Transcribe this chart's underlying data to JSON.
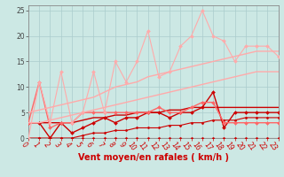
{
  "background_color": "#cce8e4",
  "grid_color": "#aacccc",
  "xlabel": "Vent moyen/en rafales ( km/h )",
  "xlabel_color": "#cc0000",
  "xlabel_fontsize": 7,
  "xtick_color": "#cc0000",
  "ytick_color": "#444444",
  "xlim": [
    0,
    23
  ],
  "ylim": [
    0,
    26
  ],
  "yticks": [
    0,
    5,
    10,
    15,
    20,
    25
  ],
  "xticks": [
    0,
    1,
    2,
    3,
    4,
    5,
    6,
    7,
    8,
    9,
    10,
    11,
    12,
    13,
    14,
    15,
    16,
    17,
    18,
    19,
    20,
    21,
    22,
    23
  ],
  "lines": [
    {
      "x": [
        0,
        1,
        2,
        3,
        4,
        5,
        6,
        7,
        8,
        9,
        10,
        11,
        12,
        13,
        14,
        15,
        16,
        17,
        18,
        19,
        20,
        21,
        22,
        23
      ],
      "y": [
        0,
        0,
        0,
        0,
        0,
        0,
        0,
        0,
        0,
        0,
        0,
        0,
        0,
        0,
        0,
        0,
        0,
        0,
        0,
        0,
        0,
        0,
        0,
        0
      ],
      "color": "#cc0000",
      "linewidth": 0.8,
      "marker": "D",
      "markersize": 1.5,
      "linestyle": "-"
    },
    {
      "x": [
        0,
        1,
        2,
        3,
        4,
        5,
        6,
        7,
        8,
        9,
        10,
        11,
        12,
        13,
        14,
        15,
        16,
        17,
        18,
        19,
        20,
        21,
        22,
        23
      ],
      "y": [
        0,
        0,
        0,
        0,
        0,
        0.5,
        1,
        1,
        1.5,
        1.5,
        2,
        2,
        2,
        2.5,
        2.5,
        3,
        3,
        3.5,
        3.5,
        3.5,
        4,
        4,
        4,
        4
      ],
      "color": "#cc0000",
      "linewidth": 0.8,
      "marker": "D",
      "markersize": 1.5,
      "linestyle": "-"
    },
    {
      "x": [
        0,
        1,
        2,
        3,
        4,
        5,
        6,
        7,
        8,
        9,
        10,
        11,
        12,
        13,
        14,
        15,
        16,
        17,
        18,
        19,
        20,
        21,
        22,
        23
      ],
      "y": [
        3,
        3,
        3,
        3,
        3,
        3.5,
        4,
        4,
        4.5,
        4.5,
        5,
        5,
        5,
        5.5,
        5.5,
        6,
        6,
        6,
        6,
        6,
        6,
        6,
        6,
        6
      ],
      "color": "#cc0000",
      "linewidth": 1.0,
      "marker": null,
      "markersize": 0,
      "linestyle": "-"
    },
    {
      "x": [
        0,
        1,
        2,
        3,
        4,
        5,
        6,
        7,
        8,
        9,
        10,
        11,
        12,
        13,
        14,
        15,
        16,
        17,
        18,
        19,
        20,
        21,
        22,
        23
      ],
      "y": [
        3,
        3,
        0,
        3,
        1,
        2,
        3,
        4,
        3,
        4,
        4,
        5,
        5,
        4,
        5,
        5,
        6,
        9,
        2,
        5,
        5,
        5,
        5,
        5
      ],
      "color": "#cc0000",
      "linewidth": 1.0,
      "marker": "D",
      "markersize": 2,
      "linestyle": "-"
    },
    {
      "x": [
        0,
        1,
        2,
        3,
        4,
        5,
        6,
        7,
        8,
        9,
        10,
        11,
        12,
        13,
        14,
        15,
        16,
        17,
        18,
        19,
        20,
        21,
        22,
        23
      ],
      "y": [
        3,
        11,
        2,
        3,
        3,
        5,
        5,
        5,
        5,
        5,
        5,
        5,
        6,
        5,
        5,
        6,
        7,
        7,
        3,
        3,
        3,
        3,
        3,
        3
      ],
      "color": "#ff6666",
      "linewidth": 1.0,
      "marker": "D",
      "markersize": 2,
      "linestyle": "-"
    },
    {
      "x": [
        0,
        1,
        2,
        3,
        4,
        5,
        6,
        7,
        8,
        9,
        10,
        11,
        12,
        13,
        14,
        15,
        16,
        17,
        18,
        19,
        20,
        21,
        22,
        23
      ],
      "y": [
        5,
        5.5,
        6,
        6.5,
        7,
        7.5,
        8,
        9,
        10,
        10.5,
        11,
        12,
        12.5,
        13,
        13.5,
        14,
        14.5,
        15,
        15.5,
        16,
        16.5,
        17,
        17,
        17
      ],
      "color": "#ffaaaa",
      "linewidth": 1.0,
      "marker": null,
      "markersize": 0,
      "linestyle": "-"
    },
    {
      "x": [
        0,
        1,
        2,
        3,
        4,
        5,
        6,
        7,
        8,
        9,
        10,
        11,
        12,
        13,
        14,
        15,
        16,
        17,
        18,
        19,
        20,
        21,
        22,
        23
      ],
      "y": [
        3,
        3,
        3.5,
        4,
        4.5,
        5,
        5.5,
        6,
        6.5,
        7,
        7.5,
        8,
        8.5,
        9,
        9.5,
        10,
        10.5,
        11,
        11.5,
        12,
        12.5,
        13,
        13,
        13
      ],
      "color": "#ffaaaa",
      "linewidth": 1.0,
      "marker": null,
      "markersize": 0,
      "linestyle": "-"
    },
    {
      "x": [
        0,
        1,
        2,
        3,
        4,
        5,
        6,
        7,
        8,
        9,
        10,
        11,
        12,
        13,
        14,
        15,
        16,
        17,
        18,
        19,
        20,
        21,
        22,
        23
      ],
      "y": [
        0,
        11,
        3,
        13,
        3,
        5,
        13,
        5,
        15,
        11,
        15,
        21,
        12,
        13,
        18,
        20,
        25,
        20,
        19,
        15,
        18,
        18,
        18,
        16
      ],
      "color": "#ffaaaa",
      "linewidth": 0.8,
      "marker": "D",
      "markersize": 2,
      "linestyle": "-"
    }
  ],
  "tick_fontsize": 5.5
}
